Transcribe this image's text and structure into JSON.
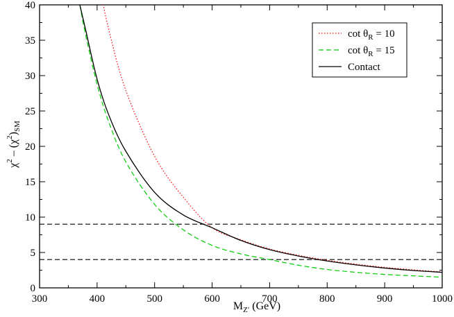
{
  "chart_data": {
    "type": "line",
    "xlim": [
      300,
      1000
    ],
    "ylim": [
      0,
      40
    ],
    "x_ticks": [
      "300",
      "400",
      "500",
      "600",
      "700",
      "800",
      "900",
      "1000"
    ],
    "y_ticks": [
      "0",
      "5",
      "10",
      "15",
      "20",
      "25",
      "30",
      "35",
      "40"
    ],
    "xlabel": {
      "main": "M",
      "sub": "Z′",
      "rest": " (GeV)"
    },
    "ylabel": {
      "a": "χ",
      "a_sup": "2",
      "b": " – (χ",
      "b_sup": "2",
      "c": ")",
      "c_sub": "SM"
    },
    "grid": false,
    "legend_position": "top-right",
    "series": [
      {
        "name": "cot θR = 10",
        "legend": {
          "pre": "cot θ",
          "sub": "R",
          "post": " = 10"
        },
        "color": "#ff0000",
        "style": "dotted",
        "x": [
          400,
          420,
          450,
          500,
          550,
          600,
          650,
          700,
          750,
          800,
          850,
          900,
          950,
          1000
        ],
        "y": [
          44.3,
          36.6,
          27.9,
          18.6,
          12.8,
          8.5,
          6.8,
          5.5,
          4.6,
          3.9,
          3.35,
          2.9,
          2.55,
          2.25
        ]
      },
      {
        "name": "cot θR = 15",
        "legend": {
          "pre": "cot θ",
          "sub": "R",
          "post": " = 15"
        },
        "color": "#00cc00",
        "style": "dashed",
        "x": [
          370,
          380,
          400,
          420,
          450,
          500,
          550,
          600,
          650,
          700,
          750,
          800,
          850,
          900,
          950,
          1000
        ],
        "y": [
          40.0,
          35.8,
          28.8,
          23.5,
          17.8,
          11.8,
          8.2,
          6.0,
          4.8,
          4.0,
          3.2,
          2.6,
          2.2,
          1.9,
          1.7,
          1.5
        ]
      },
      {
        "name": "Contact",
        "legend": {
          "pre": "Contact",
          "sub": "",
          "post": ""
        },
        "color": "#000000",
        "style": "solid",
        "x": [
          370,
          380,
          400,
          420,
          450,
          500,
          550,
          600,
          650,
          700,
          750,
          800,
          850,
          900,
          950,
          1000
        ],
        "y": [
          40.0,
          36.5,
          29.5,
          24.5,
          19.3,
          13.5,
          10.3,
          8.5,
          6.7,
          5.4,
          4.5,
          3.8,
          3.25,
          2.8,
          2.45,
          2.2
        ]
      }
    ],
    "reference_lines": [
      {
        "y": 9,
        "color": "#000000",
        "style": "dashed"
      },
      {
        "y": 4,
        "color": "#000000",
        "style": "dashed"
      }
    ]
  }
}
